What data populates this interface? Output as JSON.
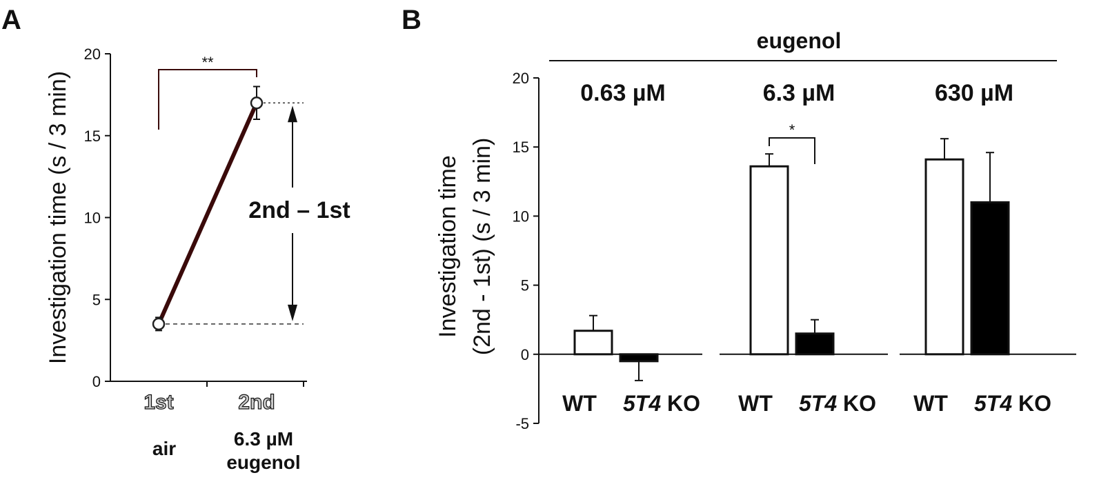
{
  "chart_data": [
    {
      "panel": "A",
      "type": "line",
      "categories": [
        "1st",
        "2nd"
      ],
      "category_sublabels": [
        "air",
        "6.3 µM\neugenol"
      ],
      "values": [
        3.5,
        17.0
      ],
      "errors": [
        0.4,
        1.0
      ],
      "ylabel": "Investigation time (s / 3 min)",
      "ylim": [
        0,
        20
      ],
      "yticks": [
        0,
        5,
        10,
        15,
        20
      ],
      "significance": "**",
      "annotation": "2nd – 1st",
      "line_color": "#3a0a0a"
    },
    {
      "panel": "B",
      "type": "bar",
      "header": "eugenol",
      "groups": [
        "0.63 µM",
        "6.3 µM",
        "630 µM"
      ],
      "bar_labels": [
        {
          "wt": "WT",
          "ko_gene": "5T4",
          "ko_suffix": " KO"
        },
        {
          "wt": "WT",
          "ko_gene": "5T4",
          "ko_suffix": " KO"
        },
        {
          "wt": "WT",
          "ko_gene": "5T4",
          "ko_suffix": " KO"
        }
      ],
      "series": [
        {
          "key": "WT",
          "values": [
            1.7,
            13.6,
            14.1
          ],
          "errors": [
            1.1,
            0.9,
            1.5
          ],
          "fill": "#ffffff"
        },
        {
          "key": "KO",
          "values": [
            -0.5,
            1.5,
            11.0
          ],
          "errors": [
            1.4,
            1.0,
            3.6
          ],
          "fill": "#000000"
        }
      ],
      "ylabel": "Investigation time\n(2nd - 1st) (s / 3 min)",
      "ylim": [
        -5,
        20
      ],
      "yticks": [
        -5,
        0,
        5,
        10,
        15,
        20
      ],
      "significance": [
        {
          "group": 1,
          "label": "*"
        }
      ]
    }
  ]
}
